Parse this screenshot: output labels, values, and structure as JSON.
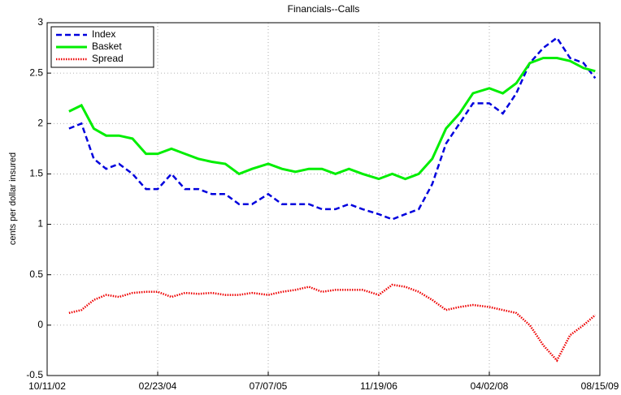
{
  "chart_data": {
    "type": "line",
    "title": "Financials--Calls",
    "y_label": "cents per dollar insured",
    "x": [
      "01/18/03",
      "03/15/03",
      "05/10/03",
      "07/05/03",
      "09/01/03",
      "11/01/03",
      "01/01/04",
      "02/23/04",
      "04/25/04",
      "06/25/04",
      "08/25/04",
      "10/25/04",
      "12/25/04",
      "02/25/05",
      "04/25/05",
      "07/07/05",
      "09/07/05",
      "11/07/05",
      "01/07/06",
      "03/07/06",
      "05/07/06",
      "07/07/06",
      "09/07/06",
      "11/19/06",
      "01/19/07",
      "03/19/07",
      "05/19/07",
      "07/19/07",
      "09/19/07",
      "11/19/07",
      "01/19/08",
      "04/02/08",
      "06/02/08",
      "08/02/08",
      "10/02/08",
      "12/02/08",
      "02/02/09",
      "04/02/09",
      "06/02/09",
      "07/25/09"
    ],
    "series": [
      {
        "name": "Index",
        "color": "#0000dd",
        "style": "dashed",
        "values": [
          1.95,
          2.0,
          1.65,
          1.55,
          1.6,
          1.5,
          1.35,
          1.35,
          1.5,
          1.35,
          1.35,
          1.3,
          1.3,
          1.2,
          1.2,
          1.3,
          1.2,
          1.2,
          1.2,
          1.15,
          1.15,
          1.2,
          1.15,
          1.1,
          1.05,
          1.1,
          1.15,
          1.4,
          1.8,
          2.0,
          2.2,
          2.2,
          2.1,
          2.3,
          2.6,
          2.75,
          2.85,
          2.65,
          2.6,
          2.45
        ]
      },
      {
        "name": "Basket",
        "color": "#00ee00",
        "style": "solid",
        "values": [
          2.12,
          2.18,
          1.95,
          1.88,
          1.88,
          1.85,
          1.7,
          1.7,
          1.75,
          1.7,
          1.65,
          1.62,
          1.6,
          1.5,
          1.55,
          1.6,
          1.55,
          1.52,
          1.55,
          1.55,
          1.5,
          1.55,
          1.5,
          1.45,
          1.5,
          1.45,
          1.5,
          1.65,
          1.95,
          2.1,
          2.3,
          2.35,
          2.3,
          2.4,
          2.6,
          2.65,
          2.65,
          2.62,
          2.55,
          2.52
        ]
      },
      {
        "name": "Spread",
        "color": "#ee0000",
        "style": "dotted",
        "values": [
          0.12,
          0.15,
          0.25,
          0.3,
          0.28,
          0.32,
          0.33,
          0.33,
          0.28,
          0.32,
          0.31,
          0.32,
          0.3,
          0.3,
          0.32,
          0.3,
          0.33,
          0.35,
          0.38,
          0.33,
          0.35,
          0.35,
          0.35,
          0.3,
          0.4,
          0.38,
          0.33,
          0.25,
          0.15,
          0.18,
          0.2,
          0.18,
          0.15,
          0.12,
          0.0,
          -0.2,
          -0.35,
          -0.1,
          0.0,
          0.1
        ]
      }
    ],
    "xlim": [
      "10/11/02",
      "08/15/09"
    ],
    "xticks": [
      "10/11/02",
      "02/23/04",
      "07/07/05",
      "11/19/06",
      "04/02/08",
      "08/15/09"
    ],
    "ylim": [
      -0.5,
      3
    ],
    "yticks": [
      -0.5,
      0,
      0.5,
      1,
      1.5,
      2,
      2.5,
      3
    ],
    "grid": true,
    "legend": "upper-left"
  }
}
